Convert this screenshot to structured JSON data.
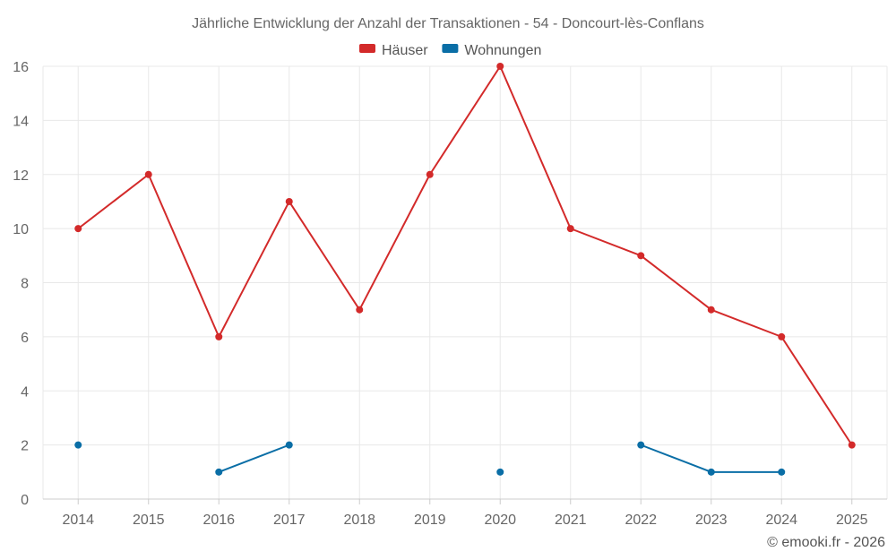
{
  "chart_data": {
    "type": "line",
    "title": "Jährliche Entwicklung der Anzahl der Transaktionen - 54 - Doncourt-lès-Conflans",
    "categories": [
      "2014",
      "2015",
      "2016",
      "2017",
      "2018",
      "2019",
      "2020",
      "2021",
      "2022",
      "2023",
      "2024",
      "2025"
    ],
    "ylim": [
      0,
      16
    ],
    "yticks": [
      0,
      2,
      4,
      6,
      8,
      10,
      12,
      14,
      16
    ],
    "grid": true,
    "legend_position": "top-center",
    "series": [
      {
        "name": "Häuser",
        "color": "#d32a2a",
        "values": [
          10,
          12,
          6,
          11,
          7,
          12,
          16,
          10,
          9,
          7,
          6,
          2
        ]
      },
      {
        "name": "Wohnungen",
        "color": "#0a6ea6",
        "values": [
          2,
          null,
          1,
          2,
          null,
          null,
          1,
          null,
          2,
          1,
          1,
          null
        ]
      }
    ]
  },
  "credit": "© emooki.fr - 2026"
}
